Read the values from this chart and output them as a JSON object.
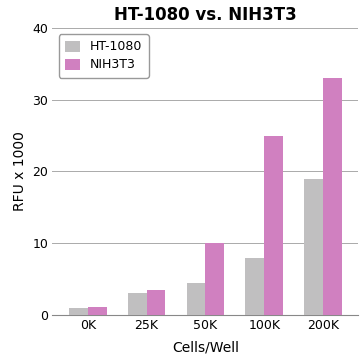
{
  "title": "HT-1080 vs. NIH3T3",
  "categories": [
    "0K",
    "25K",
    "50K",
    "100K",
    "200K"
  ],
  "ht1080_values": [
    1.0,
    3.0,
    4.5,
    8.0,
    19.0
  ],
  "nih3t3_values": [
    1.1,
    3.5,
    10.0,
    25.0,
    33.0
  ],
  "ht1080_color": "#c0bfc0",
  "nih3t3_color": "#d080c0",
  "xlabel": "Cells/Well",
  "ylabel": "RFU x 1000",
  "ylim": [
    0,
    40
  ],
  "yticks": [
    0,
    10,
    20,
    30,
    40
  ],
  "legend_labels": [
    "HT-1080",
    "NIH3T3"
  ],
  "bar_width": 0.32,
  "title_fontsize": 12,
  "axis_label_fontsize": 10,
  "tick_fontsize": 9,
  "legend_fontsize": 9,
  "background_color": "#ffffff",
  "grid_color": "#aaaaaa",
  "spine_color": "#888888"
}
